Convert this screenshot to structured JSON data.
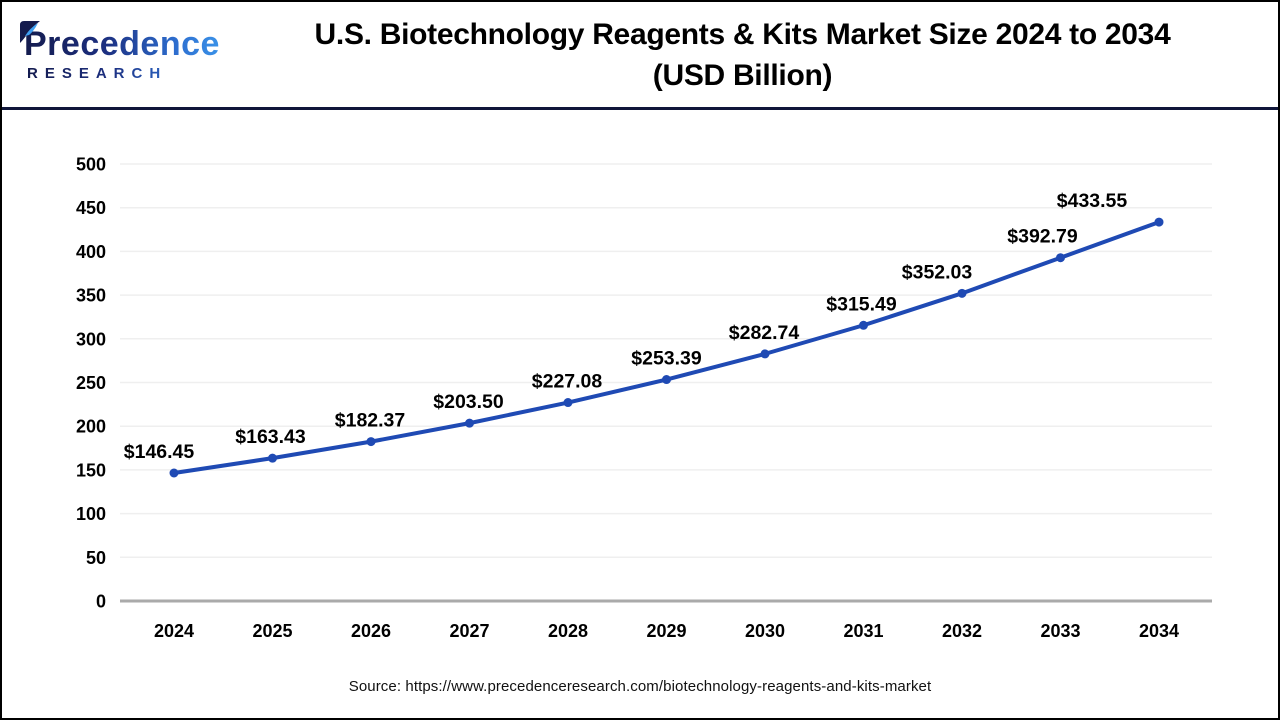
{
  "header": {
    "logo": {
      "brand_line1": "Precedence",
      "brand_line2": "RESEARCH"
    },
    "title_line1": "U.S. Biotechnology Reagents & Kits Market Size 2024 to 2034",
    "title_line2": "(USD Billion)"
  },
  "chart_data": {
    "type": "line",
    "title": "U.S. Biotechnology Reagents & Kits Market Size 2024 to 2034 (USD Billion)",
    "categories": [
      "2024",
      "2025",
      "2026",
      "2027",
      "2028",
      "2029",
      "2030",
      "2031",
      "2032",
      "2033",
      "2034"
    ],
    "values": [
      146.45,
      163.43,
      182.37,
      203.5,
      227.08,
      253.39,
      282.74,
      315.49,
      352.03,
      392.79,
      433.55
    ],
    "point_labels": [
      "$146.45",
      "$163.43",
      "$182.37",
      "$203.50",
      "$227.08",
      "$253.39",
      "$282.74",
      "$315.49",
      "$352.03",
      "$392.79",
      "$433.55"
    ],
    "xlabel": "",
    "ylabel": "",
    "ylim": [
      0,
      500
    ],
    "yticks": [
      0,
      50,
      100,
      150,
      200,
      250,
      300,
      350,
      400,
      450,
      500
    ],
    "grid": "horizontal",
    "legend_position": "none",
    "line_color": "#1f4ab4",
    "marker_color": "#1f4ab4",
    "grid_color": "#efefef",
    "axis_color": "#aaaaaa",
    "label_color": "#000000"
  },
  "footer": {
    "source": "Source: https://www.precedenceresearch.com/biotechnology-reagents-and-kits-market"
  }
}
